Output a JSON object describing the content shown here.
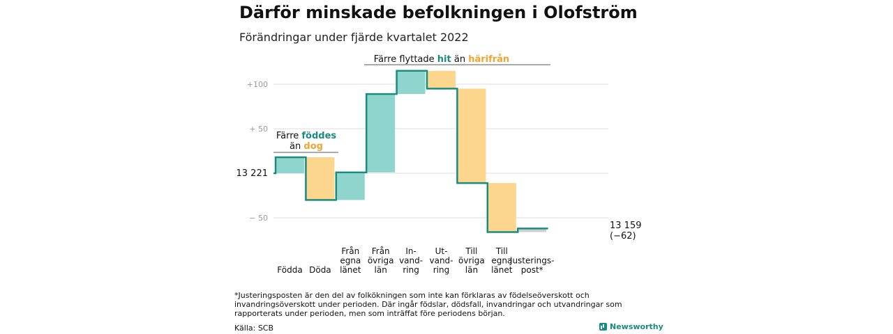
{
  "title": "Därför minskade befolkningen i Olofström",
  "subtitle": "Förändringar under fjärde kvartalet 2022",
  "colors": {
    "increase": "#8fd5cd",
    "decrease": "#fbd68c",
    "adjust": "#cfcfcf",
    "line": "#178c7f",
    "highlight_teal": "#178c7f",
    "highlight_orange": "#f0a531"
  },
  "annotations": {
    "births_deaths": {
      "line1_pre": "Färre ",
      "line1_hl": "föddes",
      "line2_pre": "än ",
      "line2_hl": "dog"
    },
    "migration": {
      "pre": "Färre flyttade ",
      "hl1": "hit",
      "mid": " än ",
      "hl2": "härifrån"
    }
  },
  "start_label": "13 221",
  "end_label": {
    "line1": "13 159",
    "line2": "(−62)"
  },
  "footnote": "*Justeringsposten är den del av folkökningen som inte kan förklaras av födelseöverskott och invandringsöverskott under perioden. Där ingår födslar, dödsfall, invandringar och utvandringar som rapporterats under perioden, men som inträffat före periodens början.",
  "source": "Källa: SCB",
  "brand": "Newsworthy",
  "chart_data": {
    "type": "waterfall",
    "baseline": 13221,
    "ylim": [
      -70,
      120
    ],
    "yticks": [
      {
        "value": 100,
        "label": "+100"
      },
      {
        "value": 50,
        "label": "+ 50"
      },
      {
        "value": 0,
        "label": "13 221"
      },
      {
        "value": -50,
        "label": "− 50"
      }
    ],
    "steps": [
      {
        "labels": [
          "Födda"
        ],
        "value": 18,
        "kind": "increase"
      },
      {
        "labels": [
          "Döda"
        ],
        "value": -48,
        "kind": "decrease"
      },
      {
        "labels": [
          "Från",
          "egna",
          "länet"
        ],
        "value": 31,
        "kind": "increase"
      },
      {
        "labels": [
          "Från",
          "övriga",
          "län"
        ],
        "value": 88,
        "kind": "increase"
      },
      {
        "labels": [
          "In-",
          "vand-",
          "ring"
        ],
        "value": 26,
        "kind": "increase"
      },
      {
        "labels": [
          "Ut-",
          "vand-",
          "ring"
        ],
        "value": -20,
        "kind": "decrease"
      },
      {
        "labels": [
          "Till",
          "övriga",
          "län"
        ],
        "value": -106,
        "kind": "decrease"
      },
      {
        "labels": [
          "Till",
          "egna",
          "länet"
        ],
        "value": -55,
        "kind": "decrease"
      },
      {
        "labels": [
          "Justerings-",
          "post*"
        ],
        "value": 4,
        "kind": "adjust"
      }
    ],
    "end_value": 13159,
    "change": -62
  }
}
